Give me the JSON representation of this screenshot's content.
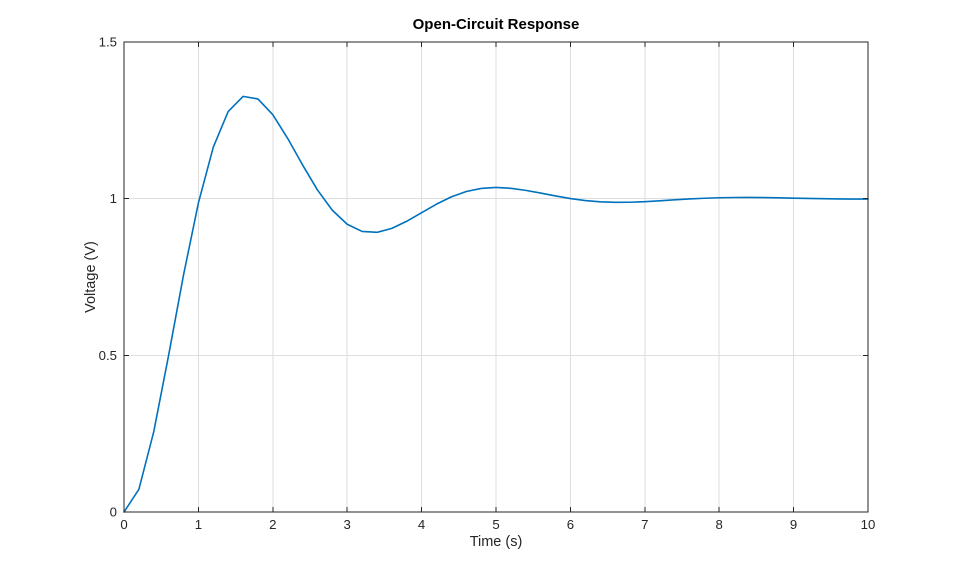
{
  "window": {
    "background": "#ffffff"
  },
  "chart_data": {
    "type": "line",
    "title": "Open-Circuit Response",
    "xlabel": "Time (s)",
    "ylabel": "Voltage (V)",
    "xlim": [
      0,
      10
    ],
    "ylim": [
      0,
      1.5
    ],
    "xticks": [
      0,
      1,
      2,
      3,
      4,
      5,
      6,
      7,
      8,
      9,
      10
    ],
    "xtick_labels": [
      "0",
      "1",
      "2",
      "3",
      "4",
      "5",
      "6",
      "7",
      "8",
      "9",
      "10"
    ],
    "yticks": [
      0,
      0.5,
      1,
      1.5
    ],
    "ytick_labels": [
      "0",
      "0.5",
      "1",
      "1.5"
    ],
    "grid": true,
    "box": true,
    "legend": "none",
    "series": [
      {
        "name": "voltage-response",
        "color": "#0072BD",
        "line_width": 1.6,
        "x": [
          0,
          0.2,
          0.4,
          0.6,
          0.8,
          1,
          1.2,
          1.4,
          1.6,
          1.8,
          2,
          2.2,
          2.4,
          2.6,
          2.8,
          3,
          3.2,
          3.4,
          3.6,
          3.8,
          4,
          4.2,
          4.4,
          4.6,
          4.8,
          5,
          5.2,
          5.4,
          5.6,
          5.8,
          6,
          6.2,
          6.4,
          6.6,
          6.8,
          7,
          7.2,
          7.4,
          7.6,
          7.8,
          8,
          8.2,
          8.4,
          8.6,
          8.8,
          9,
          9.2,
          9.4,
          9.6,
          9.8,
          10
        ],
        "y": [
          0,
          0.0724,
          0.2564,
          0.5004,
          0.7565,
          0.9864,
          1.1644,
          1.2779,
          1.3264,
          1.3182,
          1.2679,
          1.1923,
          1.1077,
          1.0279,
          0.963,
          0.9184,
          0.8955,
          0.8925,
          0.9051,
          0.9279,
          0.9553,
          0.9825,
          1.0058,
          1.0228,
          1.0327,
          1.0357,
          1.0331,
          1.0265,
          1.0178,
          1.0086,
          1.0004,
          0.9941,
          0.99,
          0.9883,
          0.9886,
          0.9905,
          0.9932,
          0.9962,
          0.999,
          1.0013,
          1.0029,
          1.0037,
          1.0038,
          1.0034,
          1.0026,
          1.0016,
          1.0006,
          0.9998,
          0.9992,
          0.9988,
          0.9987
        ]
      }
    ]
  },
  "style": {
    "axis_color": "#262626",
    "grid_color": "#dedede",
    "tick_label_color": "#262626",
    "title_color": "#000000",
    "label_color": "#262626",
    "background": "#ffffff",
    "tick_font_size": 13.2
  }
}
